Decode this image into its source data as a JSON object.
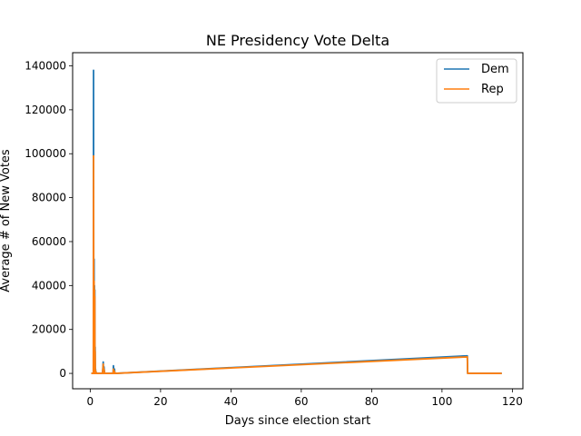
{
  "chart_data": {
    "type": "line",
    "title": "NE Presidency Vote Delta",
    "xlabel": "Days since election start",
    "ylabel": "Average # of New Votes",
    "xlim": [
      -5,
      123
    ],
    "ylim": [
      -7000,
      146000
    ],
    "xticks": [
      0,
      20,
      40,
      60,
      80,
      100,
      120
    ],
    "yticks": [
      0,
      20000,
      40000,
      60000,
      80000,
      100000,
      120000,
      140000
    ],
    "grid": false,
    "legend_position": "top-right",
    "series": [
      {
        "name": "Dem",
        "color": "#1f77b4",
        "x": [
          0.3,
          0.9,
          0.95,
          1.0,
          1.05,
          1.1,
          1.15,
          1.2,
          1.25,
          1.3,
          1.35,
          1.4,
          1.45,
          1.5,
          1.6,
          1.7,
          1.8,
          2.5,
          3.5,
          3.7,
          3.8,
          3.9,
          4.1,
          6.5,
          6.6,
          6.75,
          6.9,
          7.0,
          107.2,
          107.3,
          117.0
        ],
        "y": [
          0,
          0,
          138000,
          5000,
          0,
          52000,
          0,
          40000,
          0,
          38000,
          0,
          12000,
          0,
          2000,
          0,
          500,
          0,
          0,
          0,
          5200,
          0,
          3000,
          0,
          0,
          3500,
          0,
          2000,
          0,
          8000,
          0,
          0
        ]
      },
      {
        "name": "Rep",
        "color": "#ff7f0e",
        "x": [
          0.3,
          0.9,
          0.95,
          1.0,
          1.05,
          1.1,
          1.15,
          1.2,
          1.25,
          1.3,
          1.35,
          1.4,
          1.45,
          1.5,
          1.6,
          1.7,
          1.8,
          2.5,
          3.5,
          3.7,
          3.8,
          3.9,
          4.1,
          6.5,
          6.6,
          6.75,
          6.9,
          7.0,
          107.2,
          107.3,
          117.0
        ],
        "y": [
          0,
          0,
          99000,
          4000,
          0,
          42000,
          0,
          38000,
          0,
          35000,
          0,
          10000,
          0,
          1500,
          0,
          400,
          0,
          0,
          0,
          4200,
          0,
          2000,
          0,
          0,
          2000,
          0,
          1000,
          0,
          7500,
          0,
          0
        ]
      }
    ]
  }
}
